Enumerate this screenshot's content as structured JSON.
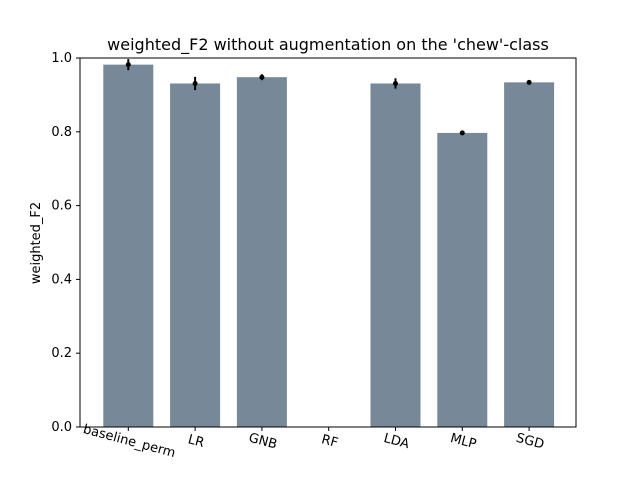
{
  "chart_data": {
    "type": "bar",
    "title": "weighted_F2 without augmentation on the 'chew'-class",
    "xlabel": "",
    "ylabel": "weighted_F2",
    "ylim": [
      0,
      1.0
    ],
    "yticks": [
      "0.0",
      "0.2",
      "0.4",
      "0.6",
      "0.8",
      "1.0"
    ],
    "categories": [
      "baseline_perm",
      "LR",
      "GNB",
      "RF",
      "LDA",
      "MLP",
      "SGD"
    ],
    "values": [
      0.982,
      0.931,
      0.948,
      0.0,
      0.931,
      0.797,
      0.934
    ],
    "errors": [
      0.015,
      0.018,
      0.008,
      0.0,
      0.014,
      0.006,
      0.004
    ],
    "bar_color": "#778899",
    "error_color": "#000000",
    "grid": false
  }
}
